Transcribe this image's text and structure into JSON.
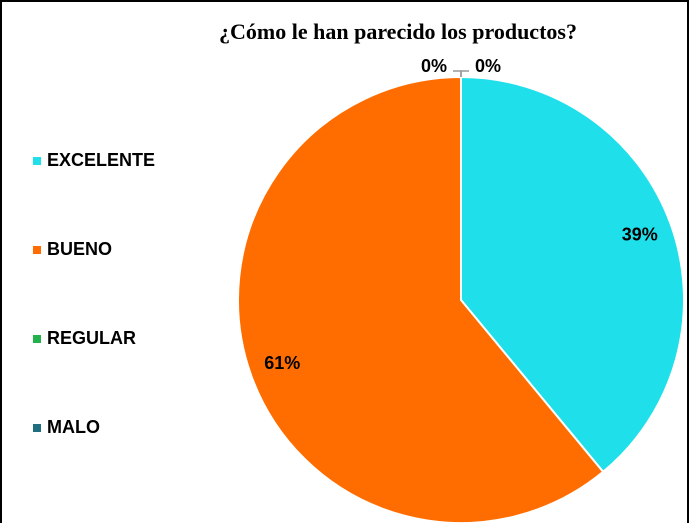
{
  "chart_data": {
    "type": "pie",
    "title": "¿Cómo le han parecido los productos?",
    "categories": [
      "EXCELENTE",
      "BUENO",
      "REGULAR",
      "MALO"
    ],
    "values": [
      39,
      61,
      0,
      0
    ],
    "value_labels": [
      "39%",
      "61%",
      "0%",
      "0%"
    ],
    "colors": [
      "#1fdfeb",
      "#ff6d00",
      "#22b14c",
      "#1f6f80"
    ],
    "legend": "left"
  }
}
